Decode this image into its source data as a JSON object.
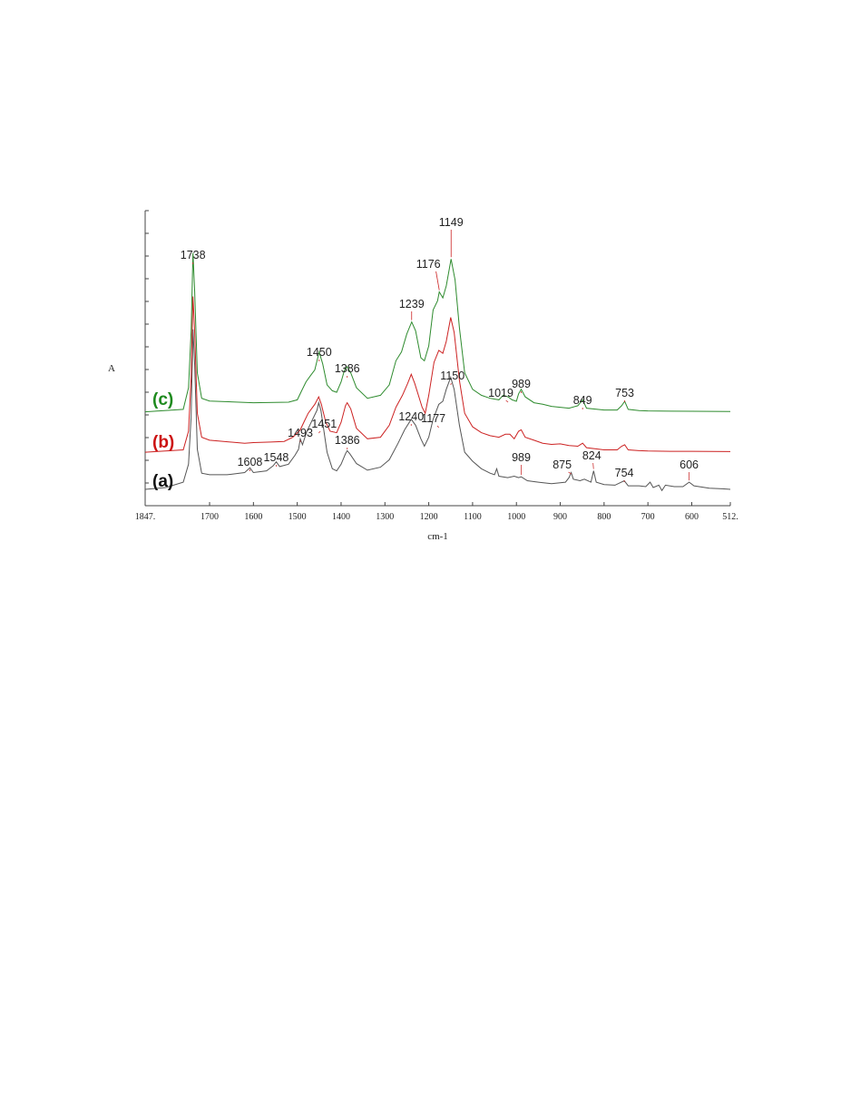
{
  "chart_data": {
    "type": "line",
    "xlabel": "cm-1",
    "ylabel": "A",
    "x_range": [
      1847,
      512
    ],
    "x_reversed": true,
    "x_ticks": [
      {
        "value": 1847,
        "label": "1847."
      },
      {
        "value": 1700,
        "label": "1700"
      },
      {
        "value": 1600,
        "label": "1600"
      },
      {
        "value": 1500,
        "label": "1500"
      },
      {
        "value": 1400,
        "label": "1400"
      },
      {
        "value": 1300,
        "label": "1300"
      },
      {
        "value": 1200,
        "label": "1200"
      },
      {
        "value": 1100,
        "label": "1100"
      },
      {
        "value": 1000,
        "label": "1000"
      },
      {
        "value": 900,
        "label": "900"
      },
      {
        "value": 800,
        "label": "800"
      },
      {
        "value": 700,
        "label": "700"
      },
      {
        "value": 600,
        "label": "600"
      },
      {
        "value": 512,
        "label": "512."
      }
    ],
    "y_range": [
      0,
      1
    ],
    "y_tick_count": 14,
    "grid": false,
    "legend": "series tags at left of traces",
    "series": [
      {
        "name": "(a)",
        "color": "#555555",
        "tag_color": "#111111",
        "offset": 0.0,
        "points": [
          [
            1847,
            0.006
          ],
          [
            1800,
            0.012
          ],
          [
            1760,
            0.03
          ],
          [
            1748,
            0.09
          ],
          [
            1742,
            0.25
          ],
          [
            1738,
            0.54
          ],
          [
            1734,
            0.42
          ],
          [
            1728,
            0.14
          ],
          [
            1718,
            0.06
          ],
          [
            1700,
            0.055
          ],
          [
            1660,
            0.055
          ],
          [
            1620,
            0.062
          ],
          [
            1608,
            0.078
          ],
          [
            1600,
            0.062
          ],
          [
            1570,
            0.068
          ],
          [
            1555,
            0.085
          ],
          [
            1548,
            0.098
          ],
          [
            1540,
            0.082
          ],
          [
            1520,
            0.09
          ],
          [
            1505,
            0.12
          ],
          [
            1497,
            0.14
          ],
          [
            1493,
            0.175
          ],
          [
            1488,
            0.155
          ],
          [
            1478,
            0.2
          ],
          [
            1465,
            0.24
          ],
          [
            1455,
            0.27
          ],
          [
            1451,
            0.295
          ],
          [
            1446,
            0.27
          ],
          [
            1432,
            0.13
          ],
          [
            1420,
            0.075
          ],
          [
            1410,
            0.068
          ],
          [
            1400,
            0.09
          ],
          [
            1390,
            0.125
          ],
          [
            1386,
            0.135
          ],
          [
            1380,
            0.125
          ],
          [
            1365,
            0.092
          ],
          [
            1340,
            0.07
          ],
          [
            1310,
            0.08
          ],
          [
            1290,
            0.105
          ],
          [
            1270,
            0.16
          ],
          [
            1255,
            0.205
          ],
          [
            1240,
            0.24
          ],
          [
            1230,
            0.22
          ],
          [
            1218,
            0.175
          ],
          [
            1210,
            0.15
          ],
          [
            1200,
            0.18
          ],
          [
            1190,
            0.24
          ],
          [
            1177,
            0.29
          ],
          [
            1168,
            0.3
          ],
          [
            1160,
            0.34
          ],
          [
            1150,
            0.38
          ],
          [
            1142,
            0.34
          ],
          [
            1130,
            0.22
          ],
          [
            1118,
            0.13
          ],
          [
            1100,
            0.1
          ],
          [
            1080,
            0.075
          ],
          [
            1060,
            0.06
          ],
          [
            1050,
            0.055
          ],
          [
            1045,
            0.075
          ],
          [
            1040,
            0.05
          ],
          [
            1020,
            0.045
          ],
          [
            1005,
            0.05
          ],
          [
            995,
            0.045
          ],
          [
            989,
            0.048
          ],
          [
            975,
            0.035
          ],
          [
            950,
            0.03
          ],
          [
            920,
            0.025
          ],
          [
            900,
            0.028
          ],
          [
            888,
            0.03
          ],
          [
            880,
            0.045
          ],
          [
            875,
            0.062
          ],
          [
            870,
            0.04
          ],
          [
            855,
            0.035
          ],
          [
            845,
            0.04
          ],
          [
            830,
            0.03
          ],
          [
            824,
            0.068
          ],
          [
            818,
            0.03
          ],
          [
            800,
            0.022
          ],
          [
            775,
            0.02
          ],
          [
            754,
            0.035
          ],
          [
            745,
            0.018
          ],
          [
            720,
            0.018
          ],
          [
            705,
            0.015
          ],
          [
            695,
            0.03
          ],
          [
            688,
            0.012
          ],
          [
            675,
            0.02
          ],
          [
            668,
            0.002
          ],
          [
            660,
            0.02
          ],
          [
            640,
            0.015
          ],
          [
            620,
            0.015
          ],
          [
            606,
            0.03
          ],
          [
            595,
            0.018
          ],
          [
            560,
            0.01
          ],
          [
            530,
            0.008
          ],
          [
            512,
            0.006
          ]
        ]
      },
      {
        "name": "(b)",
        "color": "#cc2222",
        "tag_color": "#cc1111",
        "offset": 0.13,
        "points": [
          [
            1847,
            0.0
          ],
          [
            1760,
            0.008
          ],
          [
            1748,
            0.07
          ],
          [
            1742,
            0.25
          ],
          [
            1738,
            0.52
          ],
          [
            1734,
            0.4
          ],
          [
            1728,
            0.13
          ],
          [
            1718,
            0.05
          ],
          [
            1700,
            0.04
          ],
          [
            1620,
            0.03
          ],
          [
            1600,
            0.032
          ],
          [
            1560,
            0.034
          ],
          [
            1530,
            0.036
          ],
          [
            1510,
            0.05
          ],
          [
            1493,
            0.075
          ],
          [
            1485,
            0.1
          ],
          [
            1475,
            0.13
          ],
          [
            1460,
            0.16
          ],
          [
            1451,
            0.185
          ],
          [
            1445,
            0.16
          ],
          [
            1435,
            0.1
          ],
          [
            1425,
            0.07
          ],
          [
            1410,
            0.065
          ],
          [
            1400,
            0.1
          ],
          [
            1390,
            0.155
          ],
          [
            1386,
            0.165
          ],
          [
            1378,
            0.145
          ],
          [
            1365,
            0.08
          ],
          [
            1340,
            0.045
          ],
          [
            1310,
            0.05
          ],
          [
            1290,
            0.09
          ],
          [
            1275,
            0.15
          ],
          [
            1260,
            0.19
          ],
          [
            1248,
            0.23
          ],
          [
            1240,
            0.26
          ],
          [
            1232,
            0.23
          ],
          [
            1215,
            0.15
          ],
          [
            1208,
            0.13
          ],
          [
            1200,
            0.19
          ],
          [
            1188,
            0.3
          ],
          [
            1177,
            0.34
          ],
          [
            1168,
            0.33
          ],
          [
            1160,
            0.37
          ],
          [
            1150,
            0.45
          ],
          [
            1142,
            0.4
          ],
          [
            1130,
            0.24
          ],
          [
            1118,
            0.13
          ],
          [
            1100,
            0.085
          ],
          [
            1080,
            0.065
          ],
          [
            1060,
            0.055
          ],
          [
            1040,
            0.05
          ],
          [
            1025,
            0.06
          ],
          [
            1015,
            0.06
          ],
          [
            1005,
            0.045
          ],
          [
            995,
            0.07
          ],
          [
            989,
            0.075
          ],
          [
            980,
            0.05
          ],
          [
            960,
            0.04
          ],
          [
            940,
            0.03
          ],
          [
            920,
            0.026
          ],
          [
            900,
            0.028
          ],
          [
            880,
            0.022
          ],
          [
            860,
            0.02
          ],
          [
            849,
            0.03
          ],
          [
            840,
            0.015
          ],
          [
            800,
            0.008
          ],
          [
            770,
            0.008
          ],
          [
            760,
            0.02
          ],
          [
            753,
            0.025
          ],
          [
            745,
            0.008
          ],
          [
            720,
            0.005
          ],
          [
            700,
            0.004
          ],
          [
            650,
            0.003
          ],
          [
            600,
            0.003
          ],
          [
            512,
            0.002
          ]
        ]
      },
      {
        "name": "(c)",
        "color": "#2e8b2e",
        "tag_color": "#1e8a1e",
        "offset": 0.265,
        "points": [
          [
            1847,
            0.0
          ],
          [
            1760,
            0.008
          ],
          [
            1748,
            0.08
          ],
          [
            1742,
            0.27
          ],
          [
            1738,
            0.53
          ],
          [
            1734,
            0.4
          ],
          [
            1728,
            0.13
          ],
          [
            1718,
            0.045
          ],
          [
            1700,
            0.036
          ],
          [
            1600,
            0.03
          ],
          [
            1520,
            0.032
          ],
          [
            1500,
            0.04
          ],
          [
            1490,
            0.07
          ],
          [
            1480,
            0.1
          ],
          [
            1470,
            0.12
          ],
          [
            1460,
            0.14
          ],
          [
            1450,
            0.2
          ],
          [
            1442,
            0.16
          ],
          [
            1432,
            0.09
          ],
          [
            1420,
            0.07
          ],
          [
            1410,
            0.065
          ],
          [
            1400,
            0.1
          ],
          [
            1392,
            0.14
          ],
          [
            1386,
            0.15
          ],
          [
            1378,
            0.13
          ],
          [
            1365,
            0.08
          ],
          [
            1340,
            0.045
          ],
          [
            1310,
            0.055
          ],
          [
            1290,
            0.09
          ],
          [
            1275,
            0.17
          ],
          [
            1262,
            0.2
          ],
          [
            1250,
            0.26
          ],
          [
            1239,
            0.3
          ],
          [
            1230,
            0.27
          ],
          [
            1218,
            0.18
          ],
          [
            1210,
            0.17
          ],
          [
            1200,
            0.22
          ],
          [
            1190,
            0.34
          ],
          [
            1180,
            0.37
          ],
          [
            1176,
            0.4
          ],
          [
            1168,
            0.38
          ],
          [
            1160,
            0.42
          ],
          [
            1149,
            0.51
          ],
          [
            1140,
            0.44
          ],
          [
            1130,
            0.28
          ],
          [
            1118,
            0.13
          ],
          [
            1100,
            0.075
          ],
          [
            1080,
            0.055
          ],
          [
            1060,
            0.045
          ],
          [
            1040,
            0.04
          ],
          [
            1030,
            0.055
          ],
          [
            1019,
            0.05
          ],
          [
            1010,
            0.04
          ],
          [
            1000,
            0.035
          ],
          [
            995,
            0.06
          ],
          [
            989,
            0.075
          ],
          [
            980,
            0.05
          ],
          [
            960,
            0.03
          ],
          [
            940,
            0.025
          ],
          [
            920,
            0.018
          ],
          [
            900,
            0.015
          ],
          [
            880,
            0.012
          ],
          [
            860,
            0.02
          ],
          [
            849,
            0.04
          ],
          [
            840,
            0.012
          ],
          [
            800,
            0.006
          ],
          [
            770,
            0.006
          ],
          [
            760,
            0.02
          ],
          [
            753,
            0.035
          ],
          [
            745,
            0.008
          ],
          [
            720,
            0.004
          ],
          [
            700,
            0.003
          ],
          [
            650,
            0.002
          ],
          [
            512,
            0.001
          ]
        ]
      }
    ],
    "peak_labels": [
      {
        "text": "1738",
        "x": 1738,
        "series": "(c)"
      },
      {
        "text": "1450",
        "x": 1450,
        "series": "(c)"
      },
      {
        "text": "1386",
        "x": 1386,
        "series": "(c)"
      },
      {
        "text": "1239",
        "x": 1239,
        "series": "(c)"
      },
      {
        "text": "1176",
        "x": 1176,
        "series": "(c)"
      },
      {
        "text": "1149",
        "x": 1149,
        "series": "(c)"
      },
      {
        "text": "1019",
        "x": 1019,
        "series": "(c)"
      },
      {
        "text": "989",
        "x": 989,
        "series": "(c)"
      },
      {
        "text": "849",
        "x": 849,
        "series": "(c)"
      },
      {
        "text": "753",
        "x": 753,
        "series": "(c)"
      },
      {
        "text": "1493",
        "x": 1493,
        "series": "(a)"
      },
      {
        "text": "1451",
        "x": 1451,
        "series": "(a)"
      },
      {
        "text": "1386",
        "x": 1386,
        "series": "(a)"
      },
      {
        "text": "1240",
        "x": 1240,
        "series": "(a)"
      },
      {
        "text": "1177",
        "x": 1177,
        "series": "(a)"
      },
      {
        "text": "1150",
        "x": 1150,
        "series": "(a)"
      },
      {
        "text": "1608",
        "x": 1608,
        "series": "(a)"
      },
      {
        "text": "1548",
        "x": 1548,
        "series": "(a)"
      },
      {
        "text": "989",
        "x": 989,
        "series": "(a)"
      },
      {
        "text": "875",
        "x": 875,
        "series": "(a)"
      },
      {
        "text": "824",
        "x": 824,
        "series": "(a)"
      },
      {
        "text": "754",
        "x": 754,
        "series": "(a)"
      },
      {
        "text": "606",
        "x": 606,
        "series": "(a)"
      }
    ]
  }
}
